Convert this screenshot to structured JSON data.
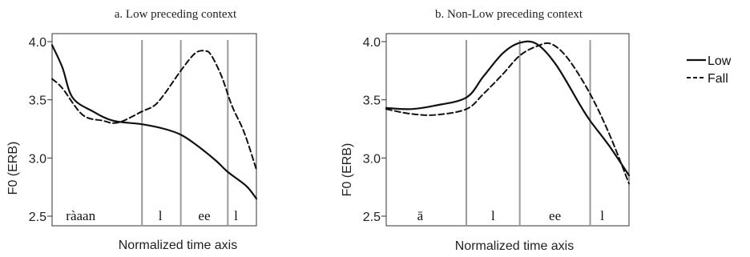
{
  "legend": [
    {
      "label": "Low",
      "style": "solid"
    },
    {
      "label": "Fall",
      "style": "dashed"
    }
  ],
  "chart_data": [
    {
      "type": "line",
      "title": "a. Low preceding context",
      "xlabel": "Normalized time axis",
      "ylabel": "F0 (ERB)",
      "ylim": [
        2.5,
        4.0
      ],
      "xlim": [
        0,
        1
      ],
      "yticks": [
        "2.5",
        "3.0",
        "3.5",
        "4.0"
      ],
      "boundaries": [
        0.44,
        0.63,
        0.86
      ],
      "segments": [
        {
          "label": "ràaan",
          "x": 0.14
        },
        {
          "label": "l",
          "x": 0.53
        },
        {
          "label": "ee",
          "x": 0.745
        },
        {
          "label": "l",
          "x": 0.9
        }
      ],
      "series": [
        {
          "name": "Low",
          "style": "solid",
          "x": [
            0.0,
            0.05,
            0.1,
            0.2,
            0.3,
            0.44,
            0.55,
            0.63,
            0.7,
            0.8,
            0.86,
            0.95,
            1.0
          ],
          "y": [
            3.97,
            3.78,
            3.52,
            3.4,
            3.32,
            3.29,
            3.25,
            3.2,
            3.12,
            2.98,
            2.88,
            2.76,
            2.65
          ]
        },
        {
          "name": "Fall",
          "style": "dashed",
          "x": [
            0.0,
            0.05,
            0.15,
            0.25,
            0.3,
            0.35,
            0.44,
            0.5,
            0.55,
            0.63,
            0.7,
            0.75,
            0.78,
            0.83,
            0.88,
            0.94,
            1.0
          ],
          "y": [
            3.68,
            3.6,
            3.37,
            3.32,
            3.3,
            3.32,
            3.4,
            3.45,
            3.55,
            3.75,
            3.9,
            3.92,
            3.88,
            3.7,
            3.45,
            3.22,
            2.9
          ]
        }
      ]
    },
    {
      "type": "line",
      "title": "b. Non-Low preceding context",
      "xlabel": "Normalized time axis",
      "ylabel": "F0 (ERB)",
      "ylim": [
        2.5,
        4.0
      ],
      "xlim": [
        0,
        1
      ],
      "yticks": [
        "2.5",
        "3.0",
        "3.5",
        "4.0"
      ],
      "boundaries": [
        0.33,
        0.55,
        0.84
      ],
      "segments": [
        {
          "label": "ā",
          "x": 0.14
        },
        {
          "label": "l",
          "x": 0.44
        },
        {
          "label": "ee",
          "x": 0.695
        },
        {
          "label": "l",
          "x": 0.89
        }
      ],
      "series": [
        {
          "name": "Low",
          "style": "solid",
          "x": [
            0.0,
            0.1,
            0.2,
            0.33,
            0.4,
            0.48,
            0.55,
            0.62,
            0.7,
            0.8,
            0.84,
            0.92,
            1.0
          ],
          "y": [
            3.43,
            3.42,
            3.45,
            3.52,
            3.7,
            3.9,
            3.99,
            3.98,
            3.8,
            3.45,
            3.32,
            3.1,
            2.85
          ]
        },
        {
          "name": "Fall",
          "style": "dashed",
          "x": [
            0.0,
            0.1,
            0.2,
            0.33,
            0.4,
            0.48,
            0.55,
            0.62,
            0.68,
            0.75,
            0.84,
            0.92,
            1.0
          ],
          "y": [
            3.42,
            3.38,
            3.37,
            3.42,
            3.55,
            3.72,
            3.88,
            3.96,
            3.98,
            3.85,
            3.55,
            3.2,
            2.78
          ]
        }
      ]
    }
  ]
}
